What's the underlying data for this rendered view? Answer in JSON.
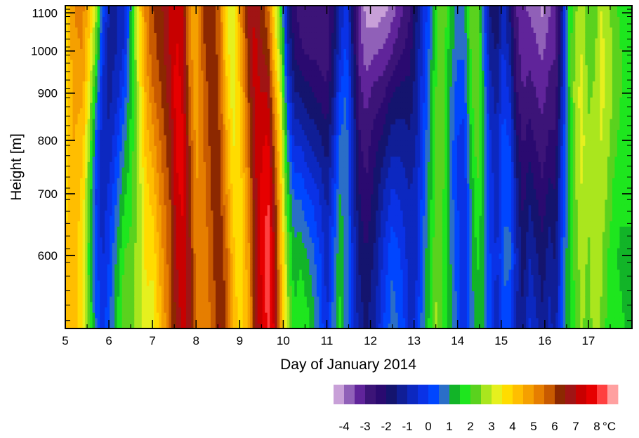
{
  "chart_data": {
    "type": "heatmap",
    "title": "",
    "xlabel": "Day of January 2014",
    "ylabel": "Height [m]",
    "xlim": [
      5,
      18
    ],
    "ylim": [
      500,
      1120
    ],
    "yscale": "log",
    "x_ticks": [
      5,
      6,
      7,
      8,
      9,
      10,
      11,
      12,
      13,
      14,
      15,
      16,
      17
    ],
    "x_tick_labels": [
      "5",
      "6",
      "7",
      "8",
      "9",
      "10",
      "11",
      "12",
      "13",
      "14",
      "15",
      "16",
      "17"
    ],
    "y_ticks": [
      600,
      700,
      800,
      900,
      1000,
      1100
    ],
    "y_tick_labels": [
      "600",
      "700",
      "800",
      "900",
      "1000",
      "1100"
    ],
    "colorbar": {
      "unit": "°C",
      "tick_labels": [
        "-4",
        "-3",
        "-2",
        "-1",
        "0",
        "1",
        "2",
        "3",
        "4",
        "5",
        "6",
        "7",
        "8"
      ],
      "levels_min": -4.5,
      "levels_step": 0.5,
      "colors": [
        "#c8a0d8",
        "#9060b8",
        "#60249a",
        "#3c1478",
        "#2a0a70",
        "#14146e",
        "#101e96",
        "#0c28c0",
        "#0a32e6",
        "#0046ff",
        "#2a6ec8",
        "#12b428",
        "#1ee61e",
        "#5ad21e",
        "#aae61e",
        "#e6f01e",
        "#ffdc00",
        "#ffbe00",
        "#f5a000",
        "#e67e00",
        "#c85a00",
        "#8c2800",
        "#a01414",
        "#c80000",
        "#e60000",
        "#ff4040",
        "#ffa0a0"
      ]
    },
    "profile_x": [
      5.0,
      5.2,
      5.4,
      5.55,
      5.7,
      5.85,
      6.0,
      6.2,
      6.35,
      6.5,
      6.7,
      6.85,
      7.0,
      7.2,
      7.4,
      7.55,
      7.7,
      7.85,
      8.0,
      8.2,
      8.4,
      8.55,
      8.7,
      8.85,
      9.0,
      9.2,
      9.35,
      9.5,
      9.65,
      9.8,
      9.95,
      10.1,
      10.25,
      10.4,
      10.55,
      10.7,
      10.85,
      11.0,
      11.15,
      11.3,
      11.45,
      11.6,
      11.75,
      11.9,
      12.1,
      12.3,
      12.5,
      12.7,
      12.9,
      13.05,
      13.2,
      13.35,
      13.5,
      13.65,
      13.8,
      14.0,
      14.15,
      14.3,
      14.45,
      14.6,
      14.75,
      14.9,
      15.05,
      15.2,
      15.35,
      15.5,
      15.65,
      15.8,
      15.95,
      16.1,
      16.25,
      16.4,
      16.55,
      16.7,
      16.85,
      17.0,
      17.15,
      17.3,
      17.45,
      17.6,
      17.75,
      17.9,
      18.0
    ],
    "profile_heights": [
      500,
      600,
      700,
      800,
      900,
      1000,
      1120
    ],
    "values": [
      [
        4.0,
        4.0,
        3.9,
        3.8,
        3.7,
        3.6,
        3.6
      ],
      [
        4.2,
        4.3,
        4.4,
        4.5,
        4.7,
        4.9,
        5.0
      ],
      [
        3.6,
        3.6,
        3.8,
        4.2,
        4.6,
        5.0,
        5.2
      ],
      [
        2.0,
        1.8,
        2.0,
        2.6,
        3.2,
        3.8,
        4.2
      ],
      [
        0.6,
        0.2,
        0.0,
        0.4,
        1.2,
        2.2,
        2.8
      ],
      [
        -0.2,
        -0.6,
        -0.8,
        -0.8,
        -0.6,
        -0.2,
        0.4
      ],
      [
        0.4,
        0.0,
        -0.4,
        -0.9,
        -1.2,
        -1.2,
        -1.0
      ],
      [
        1.6,
        1.2,
        0.6,
        0.0,
        -0.6,
        -1.0,
        -1.0
      ],
      [
        2.4,
        2.0,
        1.4,
        0.8,
        0.2,
        -0.4,
        -0.8
      ],
      [
        2.2,
        2.2,
        1.8,
        1.6,
        1.4,
        1.2,
        1.0
      ],
      [
        2.8,
        2.8,
        2.8,
        3.0,
        3.2,
        3.6,
        3.8
      ],
      [
        3.4,
        3.6,
        3.8,
        4.2,
        4.6,
        5.0,
        5.2
      ],
      [
        3.2,
        3.6,
        4.2,
        4.8,
        5.4,
        5.8,
        6.0
      ],
      [
        4.4,
        4.8,
        5.2,
        5.6,
        6.0,
        6.2,
        6.4
      ],
      [
        5.6,
        5.8,
        6.0,
        6.4,
        6.8,
        7.0,
        7.2
      ],
      [
        6.6,
        7.0,
        7.4,
        7.6,
        7.8,
        7.6,
        7.4
      ],
      [
        7.2,
        7.4,
        7.6,
        7.6,
        7.4,
        7.2,
        7.0
      ],
      [
        6.8,
        6.6,
        6.4,
        6.0,
        5.6,
        5.2,
        5.0
      ],
      [
        5.4,
        5.2,
        5.0,
        4.8,
        4.6,
        4.6,
        4.8
      ],
      [
        5.0,
        5.2,
        5.4,
        5.6,
        5.8,
        6.0,
        6.2
      ],
      [
        5.8,
        6.0,
        6.2,
        6.4,
        6.4,
        6.4,
        6.4
      ],
      [
        6.6,
        6.4,
        6.2,
        6.0,
        5.8,
        5.6,
        5.4
      ],
      [
        6.0,
        5.6,
        5.0,
        4.6,
        4.2,
        3.8,
        3.6
      ],
      [
        4.6,
        4.2,
        3.8,
        3.4,
        3.2,
        3.0,
        3.0
      ],
      [
        3.6,
        3.6,
        3.6,
        3.8,
        4.0,
        4.4,
        4.8
      ],
      [
        4.6,
        4.8,
        5.2,
        5.6,
        6.0,
        6.4,
        6.6
      ],
      [
        6.4,
        6.6,
        6.8,
        7.0,
        7.2,
        7.2,
        7.0
      ],
      [
        7.4,
        7.6,
        7.6,
        7.4,
        7.0,
        6.6,
        6.2
      ],
      [
        8.2,
        8.3,
        8.1,
        7.6,
        7.0,
        6.2,
        5.6
      ],
      [
        7.4,
        7.0,
        6.4,
        5.6,
        4.8,
        4.0,
        3.6
      ],
      [
        4.6,
        4.4,
        4.0,
        3.6,
        3.0,
        2.4,
        1.8
      ],
      [
        2.8,
        2.4,
        1.6,
        0.8,
        0.0,
        -0.8,
        -1.4
      ],
      [
        1.6,
        1.2,
        0.4,
        -0.6,
        -1.4,
        -2.0,
        -2.4
      ],
      [
        2.0,
        1.4,
        0.4,
        -0.6,
        -1.6,
        -2.4,
        -2.8
      ],
      [
        1.8,
        1.0,
        0.0,
        -1.0,
        -1.8,
        -2.6,
        -3.0
      ],
      [
        1.2,
        0.6,
        -0.2,
        -1.2,
        -2.0,
        -2.6,
        -3.0
      ],
      [
        0.4,
        0.0,
        -0.6,
        -1.4,
        -2.2,
        -2.8,
        -3.0
      ],
      [
        -0.6,
        -0.8,
        -1.2,
        -1.8,
        -2.4,
        -2.8,
        -3.0
      ],
      [
        0.8,
        0.4,
        -0.2,
        -0.8,
        -1.4,
        -1.8,
        -2.0
      ],
      [
        1.6,
        1.4,
        1.0,
        0.6,
        0.0,
        -0.6,
        -1.0
      ],
      [
        0.8,
        0.8,
        0.8,
        0.8,
        0.6,
        0.2,
        -0.2
      ],
      [
        -0.4,
        -0.6,
        -0.8,
        -1.0,
        -1.2,
        -1.6,
        -2.0
      ],
      [
        -1.2,
        -1.6,
        -2.0,
        -2.4,
        -2.8,
        -3.2,
        -3.4
      ],
      [
        -1.6,
        -2.0,
        -2.4,
        -2.8,
        -3.2,
        -3.8,
        -4.2
      ],
      [
        -1.0,
        -1.4,
        -1.8,
        -2.2,
        -2.8,
        -3.6,
        -4.4
      ],
      [
        0.0,
        -0.4,
        -1.0,
        -1.8,
        -2.6,
        -3.4,
        -4.2
      ],
      [
        0.8,
        0.4,
        -0.4,
        -1.2,
        -2.0,
        -3.0,
        -3.8
      ],
      [
        0.4,
        0.0,
        -0.6,
        -1.2,
        -1.8,
        -2.6,
        -3.2
      ],
      [
        -0.6,
        -0.8,
        -1.0,
        -1.4,
        -1.8,
        -2.2,
        -2.6
      ],
      [
        -0.4,
        -0.6,
        -0.8,
        -1.0,
        -1.2,
        -1.4,
        -1.6
      ],
      [
        0.8,
        0.6,
        0.2,
        0.0,
        -0.2,
        -0.4,
        -0.6
      ],
      [
        1.6,
        1.4,
        1.2,
        1.0,
        0.8,
        0.6,
        0.4
      ],
      [
        2.6,
        2.4,
        2.2,
        2.2,
        2.0,
        1.8,
        1.6
      ],
      [
        2.0,
        2.0,
        2.2,
        2.4,
        2.6,
        2.6,
        2.6
      ],
      [
        1.4,
        1.2,
        1.0,
        1.0,
        1.2,
        1.4,
        1.6
      ],
      [
        0.4,
        0.2,
        0.0,
        0.0,
        0.2,
        0.6,
        0.8
      ],
      [
        -0.6,
        -0.6,
        -0.4,
        -0.2,
        0.2,
        0.6,
        0.8
      ],
      [
        0.6,
        0.8,
        1.0,
        1.4,
        1.8,
        2.0,
        2.2
      ],
      [
        1.4,
        1.6,
        2.0,
        2.4,
        2.6,
        2.6,
        2.4
      ],
      [
        1.0,
        1.0,
        1.2,
        1.2,
        1.0,
        0.6,
        0.2
      ],
      [
        0.0,
        0.0,
        -0.2,
        -0.4,
        -0.8,
        -1.2,
        -1.6
      ],
      [
        -0.8,
        -0.6,
        -0.8,
        -1.0,
        -1.2,
        -1.6,
        -2.0
      ],
      [
        0.4,
        0.6,
        0.4,
        0.2,
        0.0,
        -0.4,
        -0.8
      ],
      [
        0.2,
        0.6,
        0.4,
        0.0,
        -0.6,
        -1.2,
        -1.6
      ],
      [
        -1.0,
        -0.8,
        -1.2,
        -1.8,
        -2.4,
        -2.8,
        -3.0
      ],
      [
        -1.4,
        -1.8,
        -2.2,
        -2.6,
        -3.0,
        -3.2,
        -3.4
      ],
      [
        -0.4,
        -1.0,
        -1.6,
        -2.2,
        -2.8,
        -3.2,
        -3.6
      ],
      [
        -0.8,
        -1.4,
        -2.0,
        -2.6,
        -3.0,
        -3.4,
        -3.8
      ],
      [
        -1.4,
        -1.8,
        -2.4,
        -2.8,
        -3.2,
        -3.6,
        -4.2
      ],
      [
        -0.8,
        -1.2,
        -1.8,
        -2.4,
        -2.8,
        -3.2,
        -3.6
      ],
      [
        -1.2,
        -1.6,
        -2.0,
        -2.4,
        -2.8,
        -3.0,
        -3.2
      ],
      [
        0.4,
        0.2,
        0.0,
        -0.4,
        -0.8,
        -1.2,
        -1.4
      ],
      [
        1.4,
        1.4,
        1.2,
        1.2,
        1.4,
        1.6,
        1.6
      ],
      [
        2.0,
        2.2,
        2.4,
        2.6,
        2.8,
        2.6,
        2.4
      ],
      [
        2.6,
        2.8,
        3.0,
        3.2,
        3.2,
        3.0,
        2.8
      ],
      [
        2.2,
        2.4,
        2.6,
        2.6,
        2.4,
        2.2,
        2.0
      ],
      [
        2.8,
        3.0,
        3.0,
        2.8,
        2.6,
        2.4,
        2.2
      ],
      [
        2.4,
        2.6,
        2.8,
        3.0,
        3.2,
        3.2,
        3.0
      ],
      [
        1.8,
        2.0,
        2.4,
        2.6,
        2.8,
        2.8,
        2.6
      ],
      [
        1.6,
        1.6,
        1.8,
        2.2,
        2.4,
        2.4,
        2.2
      ],
      [
        1.6,
        1.4,
        1.6,
        1.8,
        2.0,
        2.0,
        1.8
      ],
      [
        1.4,
        1.4,
        1.6,
        1.6,
        1.8,
        1.8,
        1.6
      ],
      [
        1.4,
        1.4,
        1.6,
        1.6,
        1.8,
        1.8,
        1.6
      ]
    ]
  }
}
